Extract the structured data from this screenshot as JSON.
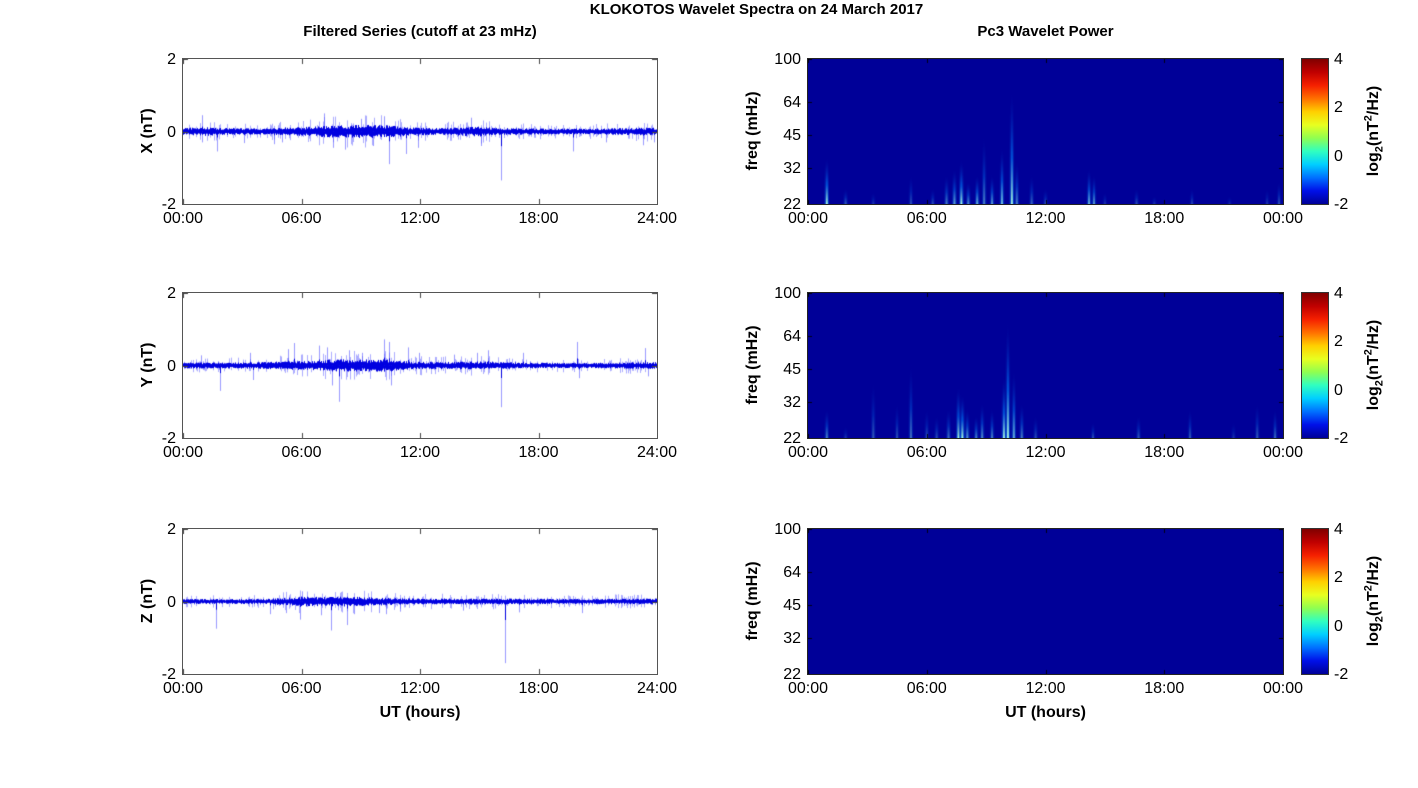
{
  "figure": {
    "title": "KLOKOTOS Wavelet Spectra on 24 March 2017",
    "left_column_title": "Filtered Series (cutoff at 23 mHz)",
    "right_column_title": "Pc3 Wavelet Power",
    "x_axis_label": "UT (hours)",
    "background_color": "#FFFFFF",
    "line_color": "#0000EE",
    "heatmap_background": "#000098",
    "colorbar": {
      "tick_labels": [
        "4",
        "2",
        "0",
        "-2"
      ],
      "tick_values": [
        4,
        2,
        0,
        -2
      ],
      "range": [
        -2,
        4
      ],
      "label_parts": [
        "log",
        "2",
        "(nT",
        "2",
        "/Hz)"
      ],
      "colormap": "jet",
      "stops": [
        "#000098",
        "#0010E8",
        "#0070FF",
        "#00CFFF",
        "#30FFC0",
        "#90FF50",
        "#E8FF20",
        "#FFD000",
        "#FF7000",
        "#F52000",
        "#C00000",
        "#800000"
      ]
    }
  },
  "chart_data": [
    {
      "type": "line",
      "name": "filtered-series-x",
      "ylabel": "X (nT)",
      "ylim": [
        -2,
        2
      ],
      "y_tick_values": [
        2,
        0,
        -2
      ],
      "y_tick_labels": [
        "2",
        "0",
        "-2"
      ],
      "x_range_hours": [
        0,
        24
      ],
      "x_tick_hours": [
        0,
        6,
        12,
        18,
        24
      ],
      "x_tick_labels": [
        "00:00",
        "06:00",
        "12:00",
        "18:00",
        "24:00"
      ],
      "seed": 11,
      "noise_envelope": [
        [
          0,
          0.07
        ],
        [
          1,
          0.09
        ],
        [
          2,
          0.07
        ],
        [
          4,
          0.06
        ],
        [
          6,
          0.09
        ],
        [
          7,
          0.11
        ],
        [
          8.5,
          0.13
        ],
        [
          10,
          0.13
        ],
        [
          10.8,
          0.11
        ],
        [
          11.5,
          0.08
        ],
        [
          13,
          0.07
        ],
        [
          14.4,
          0.09
        ],
        [
          15,
          0.1
        ],
        [
          15.8,
          0.07
        ],
        [
          18,
          0.06
        ],
        [
          21,
          0.06
        ],
        [
          24,
          0.08
        ]
      ],
      "spikes": [
        [
          0.95,
          0.45
        ],
        [
          0.95,
          -0.3
        ],
        [
          1.7,
          -0.55
        ],
        [
          3.1,
          -0.32
        ],
        [
          4.6,
          -0.35
        ],
        [
          5.0,
          -0.3
        ],
        [
          7.15,
          0.5
        ],
        [
          7.6,
          -0.45
        ],
        [
          8.2,
          -0.5
        ],
        [
          9.0,
          0.35
        ],
        [
          9.6,
          -0.4
        ],
        [
          10.2,
          0.42
        ],
        [
          10.45,
          -0.9
        ],
        [
          11.3,
          -0.62
        ],
        [
          11.9,
          -0.45
        ],
        [
          14.6,
          0.38
        ],
        [
          15.1,
          -0.4
        ],
        [
          16.1,
          -1.35
        ],
        [
          19.75,
          -0.55
        ],
        [
          21.4,
          -0.3
        ],
        [
          23.3,
          -0.38
        ],
        [
          23.85,
          -0.3
        ]
      ]
    },
    {
      "type": "line",
      "name": "filtered-series-y",
      "ylabel": "Y (nT)",
      "ylim": [
        -2,
        2
      ],
      "y_tick_values": [
        2,
        0,
        -2
      ],
      "y_tick_labels": [
        "2",
        "0",
        "-2"
      ],
      "x_range_hours": [
        0,
        24
      ],
      "x_tick_hours": [
        0,
        6,
        12,
        18,
        24
      ],
      "x_tick_labels": [
        "00:00",
        "06:00",
        "12:00",
        "18:00",
        "24:00"
      ],
      "seed": 22,
      "noise_envelope": [
        [
          0,
          0.06
        ],
        [
          2,
          0.06
        ],
        [
          4,
          0.07
        ],
        [
          6,
          0.09
        ],
        [
          7,
          0.11
        ],
        [
          8,
          0.13
        ],
        [
          9,
          0.12
        ],
        [
          10,
          0.13
        ],
        [
          10.8,
          0.1
        ],
        [
          11.5,
          0.08
        ],
        [
          13,
          0.07
        ],
        [
          14.5,
          0.08
        ],
        [
          15.5,
          0.08
        ],
        [
          17,
          0.06
        ],
        [
          20,
          0.05
        ],
        [
          24,
          0.07
        ]
      ],
      "spikes": [
        [
          0.9,
          0.28
        ],
        [
          1.85,
          -0.7
        ],
        [
          3.4,
          0.35
        ],
        [
          3.55,
          -0.4
        ],
        [
          5.3,
          0.45
        ],
        [
          5.6,
          0.62
        ],
        [
          6.9,
          0.55
        ],
        [
          7.3,
          0.5
        ],
        [
          7.55,
          -0.55
        ],
        [
          7.9,
          -1.0
        ],
        [
          8.4,
          0.42
        ],
        [
          9.05,
          0.35
        ],
        [
          10.2,
          0.72
        ],
        [
          10.45,
          0.65
        ],
        [
          10.55,
          -0.55
        ],
        [
          11.4,
          0.5
        ],
        [
          11.95,
          0.35
        ],
        [
          13.7,
          0.3
        ],
        [
          14.9,
          0.35
        ],
        [
          15.45,
          0.42
        ],
        [
          16.1,
          -1.15
        ],
        [
          17.2,
          0.35
        ],
        [
          19.95,
          0.65
        ],
        [
          20.05,
          -0.35
        ],
        [
          23.4,
          0.48
        ],
        [
          23.55,
          -0.3
        ]
      ]
    },
    {
      "type": "line",
      "name": "filtered-series-z",
      "ylabel": "Z (nT)",
      "ylim": [
        -2,
        2
      ],
      "y_tick_values": [
        2,
        0,
        -2
      ],
      "y_tick_labels": [
        "2",
        "0",
        "-2"
      ],
      "x_range_hours": [
        0,
        24
      ],
      "x_tick_hours": [
        0,
        6,
        12,
        18,
        24
      ],
      "x_tick_labels": [
        "00:00",
        "06:00",
        "12:00",
        "18:00",
        "24:00"
      ],
      "seed": 33,
      "noise_envelope": [
        [
          0,
          0.05
        ],
        [
          4,
          0.05
        ],
        [
          5.5,
          0.08
        ],
        [
          6,
          0.1
        ],
        [
          7,
          0.09
        ],
        [
          8,
          0.1
        ],
        [
          9,
          0.09
        ],
        [
          10,
          0.08
        ],
        [
          11,
          0.06
        ],
        [
          14,
          0.06
        ],
        [
          16,
          0.06
        ],
        [
          20,
          0.05
        ],
        [
          24,
          0.06
        ]
      ],
      "spikes": [
        [
          1.65,
          -0.75
        ],
        [
          4.4,
          -0.35
        ],
        [
          5.2,
          -0.32
        ],
        [
          5.9,
          -0.5
        ],
        [
          6.05,
          0.28
        ],
        [
          7.0,
          -0.38
        ],
        [
          7.5,
          -0.8
        ],
        [
          8.3,
          -0.65
        ],
        [
          8.65,
          -0.35
        ],
        [
          9.9,
          -0.32
        ],
        [
          10.3,
          -0.35
        ],
        [
          11.0,
          -0.28
        ],
        [
          14.2,
          -0.25
        ],
        [
          16.3,
          -1.7
        ],
        [
          17.0,
          -0.3
        ],
        [
          20.2,
          -0.32
        ]
      ]
    },
    {
      "type": "heatmap",
      "name": "pc3-wavelet-power-x",
      "ylabel": "freq (mHz)",
      "y_scale": "log",
      "ylim_mhz": [
        22,
        100
      ],
      "y_tick_values": [
        100,
        64,
        45,
        32,
        22
      ],
      "y_tick_labels": [
        "100",
        "64",
        "45",
        "32",
        "22"
      ],
      "x_tick_hours": [
        0,
        6,
        12,
        18,
        24
      ],
      "x_tick_labels": [
        "00:00",
        "06:00",
        "12:00",
        "18:00",
        "00:00"
      ],
      "power_range_log2": [
        -2,
        4
      ],
      "streaks": [
        [
          0.95,
          36,
          0.9
        ],
        [
          1.9,
          26,
          0.35
        ],
        [
          3.3,
          25,
          0.2
        ],
        [
          5.2,
          30,
          0.3
        ],
        [
          6.3,
          26,
          0.3
        ],
        [
          7.0,
          30,
          0.5
        ],
        [
          7.4,
          32,
          0.65
        ],
        [
          7.75,
          35,
          0.9
        ],
        [
          8.1,
          28,
          0.55
        ],
        [
          8.55,
          30,
          0.7
        ],
        [
          8.9,
          45,
          0.5
        ],
        [
          9.3,
          30,
          0.6
        ],
        [
          9.8,
          40,
          0.75
        ],
        [
          10.3,
          73,
          0.9
        ],
        [
          10.55,
          35,
          0.5
        ],
        [
          11.3,
          30,
          0.4
        ],
        [
          12.0,
          26,
          0.3
        ],
        [
          14.2,
          32,
          0.7
        ],
        [
          14.45,
          30,
          0.6
        ],
        [
          15.0,
          25,
          0.2
        ],
        [
          16.6,
          26,
          0.3
        ],
        [
          17.5,
          24,
          0.2
        ],
        [
          19.4,
          26,
          0.25
        ],
        [
          21.3,
          24,
          0.15
        ],
        [
          23.2,
          26,
          0.2
        ],
        [
          23.8,
          28,
          0.3
        ]
      ]
    },
    {
      "type": "heatmap",
      "name": "pc3-wavelet-power-y",
      "ylabel": "freq (mHz)",
      "y_scale": "log",
      "ylim_mhz": [
        22,
        100
      ],
      "y_tick_values": [
        100,
        64,
        45,
        32,
        22
      ],
      "y_tick_labels": [
        "100",
        "64",
        "45",
        "32",
        "22"
      ],
      "x_tick_hours": [
        0,
        6,
        12,
        18,
        24
      ],
      "x_tick_labels": [
        "00:00",
        "06:00",
        "12:00",
        "18:00",
        "00:00"
      ],
      "power_range_log2": [
        -2,
        4
      ],
      "streaks": [
        [
          0.95,
          30,
          0.5
        ],
        [
          1.9,
          25,
          0.2
        ],
        [
          3.3,
          40,
          0.35
        ],
        [
          4.5,
          32,
          0.3
        ],
        [
          5.2,
          48,
          0.45
        ],
        [
          6.0,
          30,
          0.3
        ],
        [
          6.5,
          28,
          0.3
        ],
        [
          7.1,
          30,
          0.45
        ],
        [
          7.6,
          38,
          0.85
        ],
        [
          7.8,
          35,
          0.95
        ],
        [
          8.05,
          30,
          0.6
        ],
        [
          8.5,
          28,
          0.5
        ],
        [
          8.8,
          32,
          0.55
        ],
        [
          9.3,
          30,
          0.5
        ],
        [
          9.9,
          42,
          0.9
        ],
        [
          10.1,
          75,
          0.95
        ],
        [
          10.4,
          45,
          0.7
        ],
        [
          10.8,
          32,
          0.5
        ],
        [
          11.5,
          28,
          0.3
        ],
        [
          14.4,
          26,
          0.3
        ],
        [
          16.7,
          28,
          0.35
        ],
        [
          19.3,
          30,
          0.35
        ],
        [
          21.5,
          26,
          0.2
        ],
        [
          22.7,
          32,
          0.35
        ],
        [
          23.6,
          30,
          0.4
        ]
      ]
    },
    {
      "type": "heatmap",
      "name": "pc3-wavelet-power-z",
      "ylabel": "freq (mHz)",
      "y_scale": "log",
      "ylim_mhz": [
        22,
        100
      ],
      "y_tick_values": [
        100,
        64,
        45,
        32,
        22
      ],
      "y_tick_labels": [
        "100",
        "64",
        "45",
        "32",
        "22"
      ],
      "x_tick_hours": [
        0,
        6,
        12,
        18,
        24
      ],
      "x_tick_labels": [
        "00:00",
        "06:00",
        "12:00",
        "18:00",
        "00:00"
      ],
      "power_range_log2": [
        -2,
        4
      ],
      "streaks": []
    }
  ]
}
